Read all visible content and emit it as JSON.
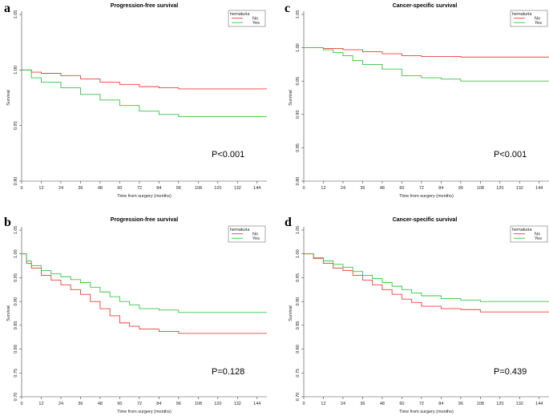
{
  "chart_data": [
    {
      "panel": "a",
      "type": "line",
      "title": "Progression-free survival",
      "xlabel": "Time from surgery (months)",
      "ylabel": "Survival",
      "xlim": [
        0,
        150
      ],
      "ylim": [
        0.9,
        1.05
      ],
      "xticks": [
        "0",
        "12",
        "24",
        "36",
        "48",
        "60",
        "72",
        "84",
        "96",
        "108",
        "120",
        "132",
        "144"
      ],
      "yticks": [
        "0.90",
        "0.95",
        "1.00",
        "1.05"
      ],
      "legend": {
        "title": "hematuria",
        "position": "top-right",
        "entries": [
          "No",
          "Yes"
        ]
      },
      "pvalue": "P<0.001",
      "series": [
        {
          "name": "No",
          "color": "#e8413a",
          "x": [
            0,
            6,
            12,
            24,
            36,
            48,
            60,
            72,
            84,
            96,
            150
          ],
          "y": [
            1.0,
            0.998,
            0.997,
            0.995,
            0.992,
            0.989,
            0.987,
            0.985,
            0.984,
            0.983,
            0.983
          ]
        },
        {
          "name": "Yes",
          "color": "#36c24a",
          "x": [
            0,
            6,
            12,
            24,
            36,
            48,
            60,
            72,
            84,
            96,
            150
          ],
          "y": [
            1.0,
            0.993,
            0.989,
            0.984,
            0.978,
            0.973,
            0.968,
            0.963,
            0.96,
            0.958,
            0.958
          ]
        }
      ]
    },
    {
      "panel": "c",
      "type": "line",
      "title": "Cancer-specific survival",
      "xlabel": "Time from surgery (months)",
      "ylabel": "Survival",
      "xlim": [
        0,
        150
      ],
      "ylim": [
        0.8,
        1.05
      ],
      "xticks": [
        "0",
        "12",
        "24",
        "36",
        "48",
        "60",
        "72",
        "84",
        "96",
        "108",
        "120",
        "132",
        "144"
      ],
      "yticks": [
        "0.80",
        "0.85",
        "0.90",
        "0.95",
        "1.00",
        "1.05"
      ],
      "legend": {
        "title": "hematuria",
        "position": "top-right",
        "entries": [
          "No",
          "Yes"
        ]
      },
      "pvalue": "P<0.001",
      "series": [
        {
          "name": "No",
          "color": "#e8413a",
          "x": [
            0,
            12,
            24,
            36,
            48,
            60,
            72,
            96,
            150
          ],
          "y": [
            1.0,
            0.999,
            0.997,
            0.994,
            0.991,
            0.988,
            0.987,
            0.986,
            0.986
          ]
        },
        {
          "name": "Yes",
          "color": "#36c24a",
          "x": [
            0,
            12,
            18,
            24,
            30,
            36,
            48,
            60,
            72,
            84,
            96,
            150
          ],
          "y": [
            1.0,
            0.997,
            0.993,
            0.988,
            0.981,
            0.975,
            0.968,
            0.958,
            0.955,
            0.953,
            0.95,
            0.95
          ]
        }
      ]
    },
    {
      "panel": "b",
      "type": "line",
      "title": "Progression-free survival",
      "xlabel": "Time from surgery (months)",
      "ylabel": "Survival",
      "xlim": [
        0,
        150
      ],
      "ylim": [
        0.7,
        1.05
      ],
      "xticks": [
        "0",
        "12",
        "24",
        "36",
        "48",
        "60",
        "72",
        "84",
        "96",
        "108",
        "120",
        "132",
        "144"
      ],
      "yticks": [
        "0.70",
        "0.75",
        "0.80",
        "0.85",
        "0.90",
        "0.95",
        "1.00",
        "1.05"
      ],
      "legend": {
        "title": "hematuria",
        "position": "top-right",
        "entries": [
          "No",
          "Yes"
        ]
      },
      "pvalue": "P=0.128",
      "series": [
        {
          "name": "No",
          "color": "#e8413a",
          "x": [
            0,
            3,
            6,
            12,
            18,
            24,
            30,
            36,
            42,
            48,
            54,
            60,
            66,
            72,
            84,
            96,
            150
          ],
          "y": [
            1.0,
            0.98,
            0.97,
            0.955,
            0.945,
            0.935,
            0.925,
            0.915,
            0.9,
            0.885,
            0.87,
            0.855,
            0.848,
            0.842,
            0.837,
            0.833,
            0.833
          ]
        },
        {
          "name": "Yes",
          "color": "#36c24a",
          "x": [
            0,
            3,
            6,
            12,
            18,
            24,
            30,
            36,
            42,
            48,
            54,
            60,
            66,
            72,
            84,
            96,
            150
          ],
          "y": [
            1.0,
            0.985,
            0.975,
            0.965,
            0.958,
            0.952,
            0.946,
            0.94,
            0.93,
            0.92,
            0.91,
            0.9,
            0.893,
            0.885,
            0.882,
            0.877,
            0.877
          ]
        }
      ]
    },
    {
      "panel": "d",
      "type": "line",
      "title": "Cancer-specific survival",
      "xlabel": "Time from surgery (months)",
      "ylabel": "Survival",
      "xlim": [
        0,
        150
      ],
      "ylim": [
        0.7,
        1.05
      ],
      "xticks": [
        "0",
        "12",
        "24",
        "36",
        "48",
        "60",
        "72",
        "84",
        "96",
        "108",
        "120",
        "132",
        "144"
      ],
      "yticks": [
        "0.70",
        "0.75",
        "0.80",
        "0.85",
        "0.90",
        "0.95",
        "1.00",
        "1.05"
      ],
      "legend": {
        "title": "hematuria",
        "position": "top-right",
        "entries": [
          "No",
          "Yes"
        ]
      },
      "pvalue": "P=0.439",
      "series": [
        {
          "name": "No",
          "color": "#e8413a",
          "x": [
            0,
            6,
            12,
            18,
            24,
            30,
            36,
            42,
            48,
            54,
            60,
            66,
            72,
            84,
            96,
            108,
            150
          ],
          "y": [
            1.0,
            0.99,
            0.98,
            0.97,
            0.965,
            0.955,
            0.945,
            0.935,
            0.925,
            0.915,
            0.905,
            0.898,
            0.89,
            0.885,
            0.883,
            0.878,
            0.878
          ]
        },
        {
          "name": "Yes",
          "color": "#36c24a",
          "x": [
            0,
            6,
            12,
            18,
            24,
            30,
            36,
            42,
            48,
            54,
            60,
            66,
            72,
            84,
            96,
            108,
            150
          ],
          "y": [
            1.0,
            0.992,
            0.985,
            0.978,
            0.972,
            0.963,
            0.955,
            0.948,
            0.94,
            0.932,
            0.925,
            0.918,
            0.912,
            0.906,
            0.903,
            0.9,
            0.9
          ]
        }
      ]
    }
  ]
}
